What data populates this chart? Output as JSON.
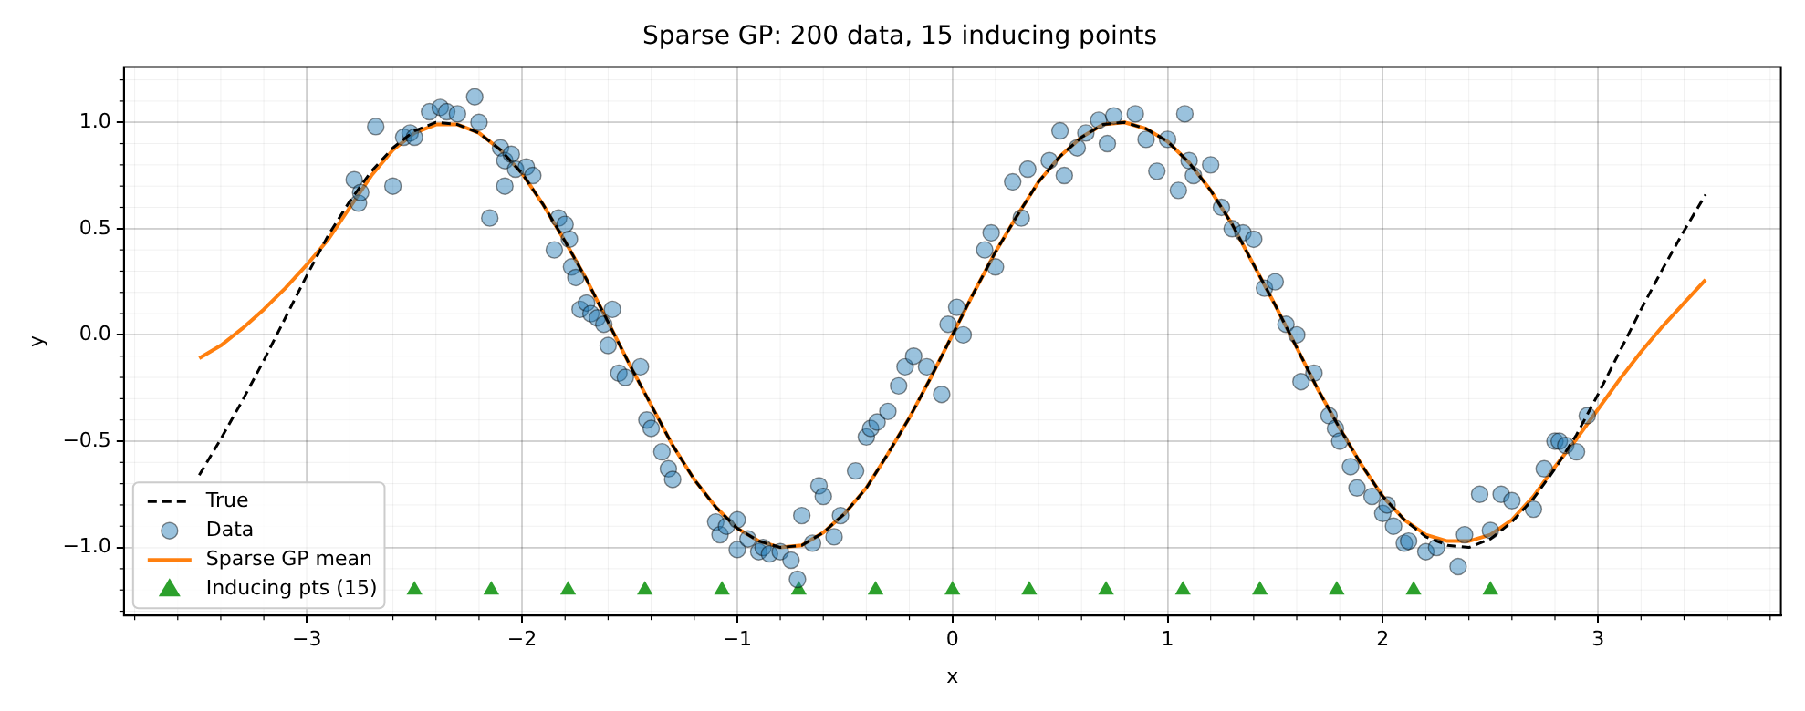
{
  "chart_data": {
    "type": "line",
    "title": "Sparse GP: 200 data, 15 inducing points",
    "xlabel": "x",
    "ylabel": "y",
    "xlim": [
      -3.85,
      3.85
    ],
    "ylim": [
      -1.32,
      1.26
    ],
    "xticks": [
      {
        "value": -3,
        "label": "−3"
      },
      {
        "value": -2,
        "label": "−2"
      },
      {
        "value": -1,
        "label": "−1"
      },
      0,
      1,
      2,
      3
    ],
    "yticks": [
      {
        "value": -1,
        "label": "−1.0"
      },
      {
        "value": -0.5,
        "label": "−0.5"
      },
      {
        "value": 0,
        "label": "0.0"
      },
      0.5,
      {
        "value": 1,
        "label": "1.0"
      }
    ],
    "grid": true,
    "legend": "bottom left",
    "series": [
      {
        "name": "True",
        "type": "line",
        "color": "#000000",
        "line_style": "dashed",
        "marker": "none",
        "x": [
          -3.5,
          -3.4,
          -3.3,
          -3.2,
          -3.1,
          -3.0,
          -2.9,
          -2.8,
          -2.7,
          -2.6,
          -2.5,
          -2.4,
          -2.3,
          -2.2,
          -2.1,
          -2.0,
          -1.9,
          -1.8,
          -1.7,
          -1.6,
          -1.5,
          -1.4,
          -1.3,
          -1.2,
          -1.1,
          -1.0,
          -0.9,
          -0.8,
          -0.7,
          -0.6,
          -0.5,
          -0.4,
          -0.3,
          -0.2,
          -0.1,
          0,
          0.1,
          0.2,
          0.3,
          0.4,
          0.5,
          0.6,
          0.7,
          0.8,
          0.9,
          1.0,
          1.1,
          1.2,
          1.3,
          1.4,
          1.5,
          1.6,
          1.7,
          1.8,
          1.9,
          2.0,
          2.1,
          2.2,
          2.3,
          2.4,
          2.5,
          2.6,
          2.7,
          2.8,
          2.9,
          3.0,
          3.1,
          3.2,
          3.3,
          3.4,
          3.5
        ],
        "values": [
          -0.66,
          -0.49,
          -0.31,
          -0.12,
          0.08,
          0.28,
          0.47,
          0.63,
          0.77,
          0.88,
          0.96,
          1.0,
          0.99,
          0.95,
          0.87,
          0.76,
          0.61,
          0.44,
          0.26,
          0.06,
          -0.14,
          -0.33,
          -0.52,
          -0.68,
          -0.81,
          -0.91,
          -0.97,
          -1.0,
          -0.99,
          -0.93,
          -0.84,
          -0.72,
          -0.56,
          -0.39,
          -0.2,
          0,
          0.2,
          0.39,
          0.56,
          0.72,
          0.84,
          0.93,
          0.99,
          1.0,
          0.97,
          0.91,
          0.81,
          0.68,
          0.52,
          0.33,
          0.14,
          -0.06,
          -0.26,
          -0.44,
          -0.61,
          -0.76,
          -0.87,
          -0.95,
          -0.99,
          -1.0,
          -0.96,
          -0.88,
          -0.77,
          -0.63,
          -0.47,
          -0.28,
          -0.08,
          0.12,
          0.31,
          0.49,
          0.66
        ]
      },
      {
        "name": "Data",
        "type": "scatter",
        "color": "#1f77b4",
        "marker": "circle",
        "x": [
          -2.78,
          -2.76,
          -2.75,
          -2.68,
          -2.6,
          -2.55,
          -2.52,
          -2.5,
          -2.43,
          -2.38,
          -2.35,
          -2.3,
          -2.22,
          -2.2,
          -2.15,
          -2.1,
          -2.08,
          -2.08,
          -2.05,
          -2.03,
          -1.98,
          -1.95,
          -1.85,
          -1.83,
          -1.8,
          -1.78,
          -1.77,
          -1.75,
          -1.73,
          -1.7,
          -1.68,
          -1.65,
          -1.62,
          -1.6,
          -1.58,
          -1.55,
          -1.52,
          -1.45,
          -1.42,
          -1.4,
          -1.35,
          -1.32,
          -1.3,
          -1.1,
          -1.08,
          -1.05,
          -1.0,
          -1.0,
          -0.95,
          -0.9,
          -0.88,
          -0.85,
          -0.8,
          -0.75,
          -0.72,
          -0.7,
          -0.65,
          -0.62,
          -0.6,
          -0.55,
          -0.52,
          -0.45,
          -0.4,
          -0.38,
          -0.35,
          -0.3,
          -0.25,
          -0.22,
          -0.18,
          -0.12,
          -0.05,
          -0.02,
          0.02,
          0.05,
          0.15,
          0.18,
          0.2,
          0.28,
          0.32,
          0.35,
          0.45,
          0.5,
          0.52,
          0.58,
          0.62,
          0.68,
          0.72,
          0.75,
          0.85,
          0.9,
          0.95,
          1.0,
          1.05,
          1.08,
          1.1,
          1.12,
          1.2,
          1.25,
          1.3,
          1.35,
          1.4,
          1.45,
          1.5,
          1.55,
          1.6,
          1.62,
          1.68,
          1.75,
          1.78,
          1.8,
          1.85,
          1.88,
          1.95,
          2.0,
          2.02,
          2.05,
          2.1,
          2.12,
          2.2,
          2.25,
          2.35,
          2.38,
          2.45,
          2.5,
          2.55,
          2.6,
          2.7,
          2.75,
          2.8,
          2.82,
          2.85,
          2.9,
          2.95
        ],
        "values": [
          0.73,
          0.62,
          0.67,
          0.98,
          0.7,
          0.93,
          0.95,
          0.93,
          1.05,
          1.07,
          1.05,
          1.04,
          1.12,
          1.0,
          0.55,
          0.88,
          0.82,
          0.7,
          0.85,
          0.78,
          0.79,
          0.75,
          0.4,
          0.55,
          0.52,
          0.45,
          0.32,
          0.27,
          0.12,
          0.15,
          0.1,
          0.08,
          0.05,
          -0.05,
          0.12,
          -0.18,
          -0.2,
          -0.15,
          -0.4,
          -0.44,
          -0.55,
          -0.63,
          -0.68,
          -0.88,
          -0.94,
          -0.9,
          -0.87,
          -1.01,
          -0.96,
          -1.02,
          -1.0,
          -1.03,
          -1.02,
          -1.06,
          -1.15,
          -0.85,
          -0.98,
          -0.71,
          -0.76,
          -0.95,
          -0.85,
          -0.64,
          -0.48,
          -0.44,
          -0.41,
          -0.36,
          -0.24,
          -0.15,
          -0.1,
          -0.15,
          -0.28,
          0.05,
          0.13,
          0.0,
          0.4,
          0.48,
          0.32,
          0.72,
          0.55,
          0.78,
          0.82,
          0.96,
          0.75,
          0.88,
          0.95,
          1.01,
          0.9,
          1.03,
          1.04,
          0.92,
          0.77,
          0.92,
          0.68,
          1.04,
          0.82,
          0.75,
          0.8,
          0.6,
          0.5,
          0.48,
          0.45,
          0.22,
          0.25,
          0.05,
          0.0,
          -0.22,
          -0.18,
          -0.38,
          -0.44,
          -0.5,
          -0.62,
          -0.72,
          -0.76,
          -0.84,
          -0.8,
          -0.9,
          -0.98,
          -0.97,
          -1.02,
          -1.0,
          -1.09,
          -0.94,
          -0.75,
          -0.92,
          -0.75,
          -0.78,
          -0.82,
          -0.63,
          -0.5,
          -0.5,
          -0.52,
          -0.55,
          -0.38
        ]
      },
      {
        "name": "Sparse GP mean",
        "type": "line",
        "color": "#ff7f0e",
        "line_style": "solid",
        "marker": "none",
        "x": [
          -3.5,
          -3.4,
          -3.3,
          -3.2,
          -3.1,
          -3.0,
          -2.9,
          -2.8,
          -2.7,
          -2.6,
          -2.5,
          -2.4,
          -2.3,
          -2.2,
          -2.1,
          -2.0,
          -1.9,
          -1.8,
          -1.7,
          -1.6,
          -1.5,
          -1.4,
          -1.3,
          -1.2,
          -1.1,
          -1.0,
          -0.9,
          -0.8,
          -0.7,
          -0.6,
          -0.5,
          -0.4,
          -0.3,
          -0.2,
          -0.1,
          0,
          0.1,
          0.2,
          0.3,
          0.4,
          0.5,
          0.6,
          0.7,
          0.8,
          0.9,
          1.0,
          1.1,
          1.2,
          1.3,
          1.4,
          1.5,
          1.6,
          1.7,
          1.8,
          1.9,
          2.0,
          2.1,
          2.2,
          2.3,
          2.4,
          2.5,
          2.6,
          2.7,
          2.8,
          2.9,
          3.0,
          3.1,
          3.2,
          3.3,
          3.4,
          3.5
        ],
        "values": [
          -0.11,
          -0.05,
          0.03,
          0.12,
          0.22,
          0.33,
          0.45,
          0.6,
          0.75,
          0.87,
          0.95,
          0.99,
          0.99,
          0.95,
          0.87,
          0.76,
          0.61,
          0.44,
          0.26,
          0.06,
          -0.14,
          -0.33,
          -0.52,
          -0.68,
          -0.81,
          -0.91,
          -0.97,
          -1.0,
          -0.99,
          -0.93,
          -0.84,
          -0.72,
          -0.56,
          -0.39,
          -0.2,
          0,
          0.2,
          0.39,
          0.56,
          0.72,
          0.84,
          0.93,
          0.99,
          1.0,
          0.97,
          0.91,
          0.81,
          0.68,
          0.52,
          0.33,
          0.14,
          -0.06,
          -0.26,
          -0.44,
          -0.61,
          -0.76,
          -0.87,
          -0.94,
          -0.97,
          -0.97,
          -0.94,
          -0.87,
          -0.76,
          -0.62,
          -0.49,
          -0.35,
          -0.21,
          -0.08,
          0.04,
          0.15,
          0.26
        ]
      },
      {
        "name": "Inducing pts (15)",
        "type": "scatter",
        "color": "#2ca02c",
        "marker": "triangle",
        "x": [
          -2.5,
          -2.143,
          -1.786,
          -1.429,
          -1.071,
          -0.714,
          -0.357,
          0,
          0.357,
          0.714,
          1.071,
          1.429,
          1.786,
          2.143,
          2.5
        ],
        "values": [
          -1.2,
          -1.2,
          -1.2,
          -1.2,
          -1.2,
          -1.2,
          -1.2,
          -1.2,
          -1.2,
          -1.2,
          -1.2,
          -1.2,
          -1.2,
          -1.2,
          -1.2
        ]
      }
    ]
  }
}
